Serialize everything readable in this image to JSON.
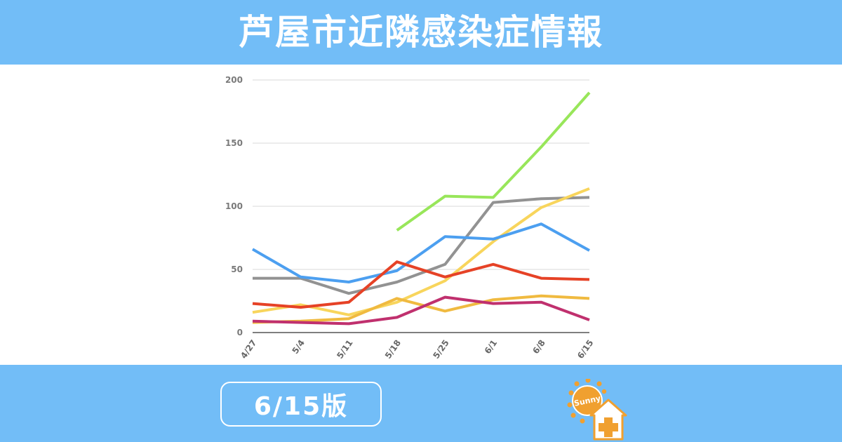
{
  "header": {
    "title": "芦屋市近隣感染症情報"
  },
  "footer": {
    "edition": "6/15版"
  },
  "logo": {
    "text": "Sunny",
    "icon": "sun-house-plus-logo"
  },
  "colors": {
    "banner": "#72bdf7",
    "green": "#98e65a",
    "gray": "#929292",
    "yellow": "#f8d55c",
    "blue": "#4c9ff0",
    "red": "#e64226",
    "orange": "#f0ba40",
    "magenta": "#c0306e"
  },
  "chart_data": {
    "type": "line",
    "categories": [
      "4/27",
      "5/4",
      "5/11",
      "5/18",
      "5/25",
      "6/1",
      "6/8",
      "6/15"
    ],
    "ylim": [
      0,
      200
    ],
    "yticks": [
      0,
      50,
      100,
      150,
      200
    ],
    "grid": true,
    "legend": "none",
    "series": [
      {
        "color": "#98e65a",
        "values": [
          null,
          null,
          null,
          81,
          108,
          107,
          147,
          190
        ]
      },
      {
        "color": "#929292",
        "values": [
          43,
          43,
          31,
          40,
          54,
          103,
          106,
          107
        ]
      },
      {
        "color": "#f8d55c",
        "values": [
          16,
          22,
          14,
          24,
          41,
          72,
          99,
          114
        ]
      },
      {
        "color": "#4c9ff0",
        "values": [
          66,
          44,
          40,
          49,
          76,
          74,
          86,
          65
        ]
      },
      {
        "color": "#e64226",
        "values": [
          23,
          20,
          24,
          56,
          44,
          54,
          43,
          42
        ]
      },
      {
        "color": "#f0ba40",
        "values": [
          8,
          9,
          11,
          27,
          17,
          26,
          29,
          27
        ]
      },
      {
        "color": "#c0306e",
        "values": [
          9,
          8,
          7,
          12,
          28,
          23,
          24,
          10
        ]
      }
    ]
  }
}
